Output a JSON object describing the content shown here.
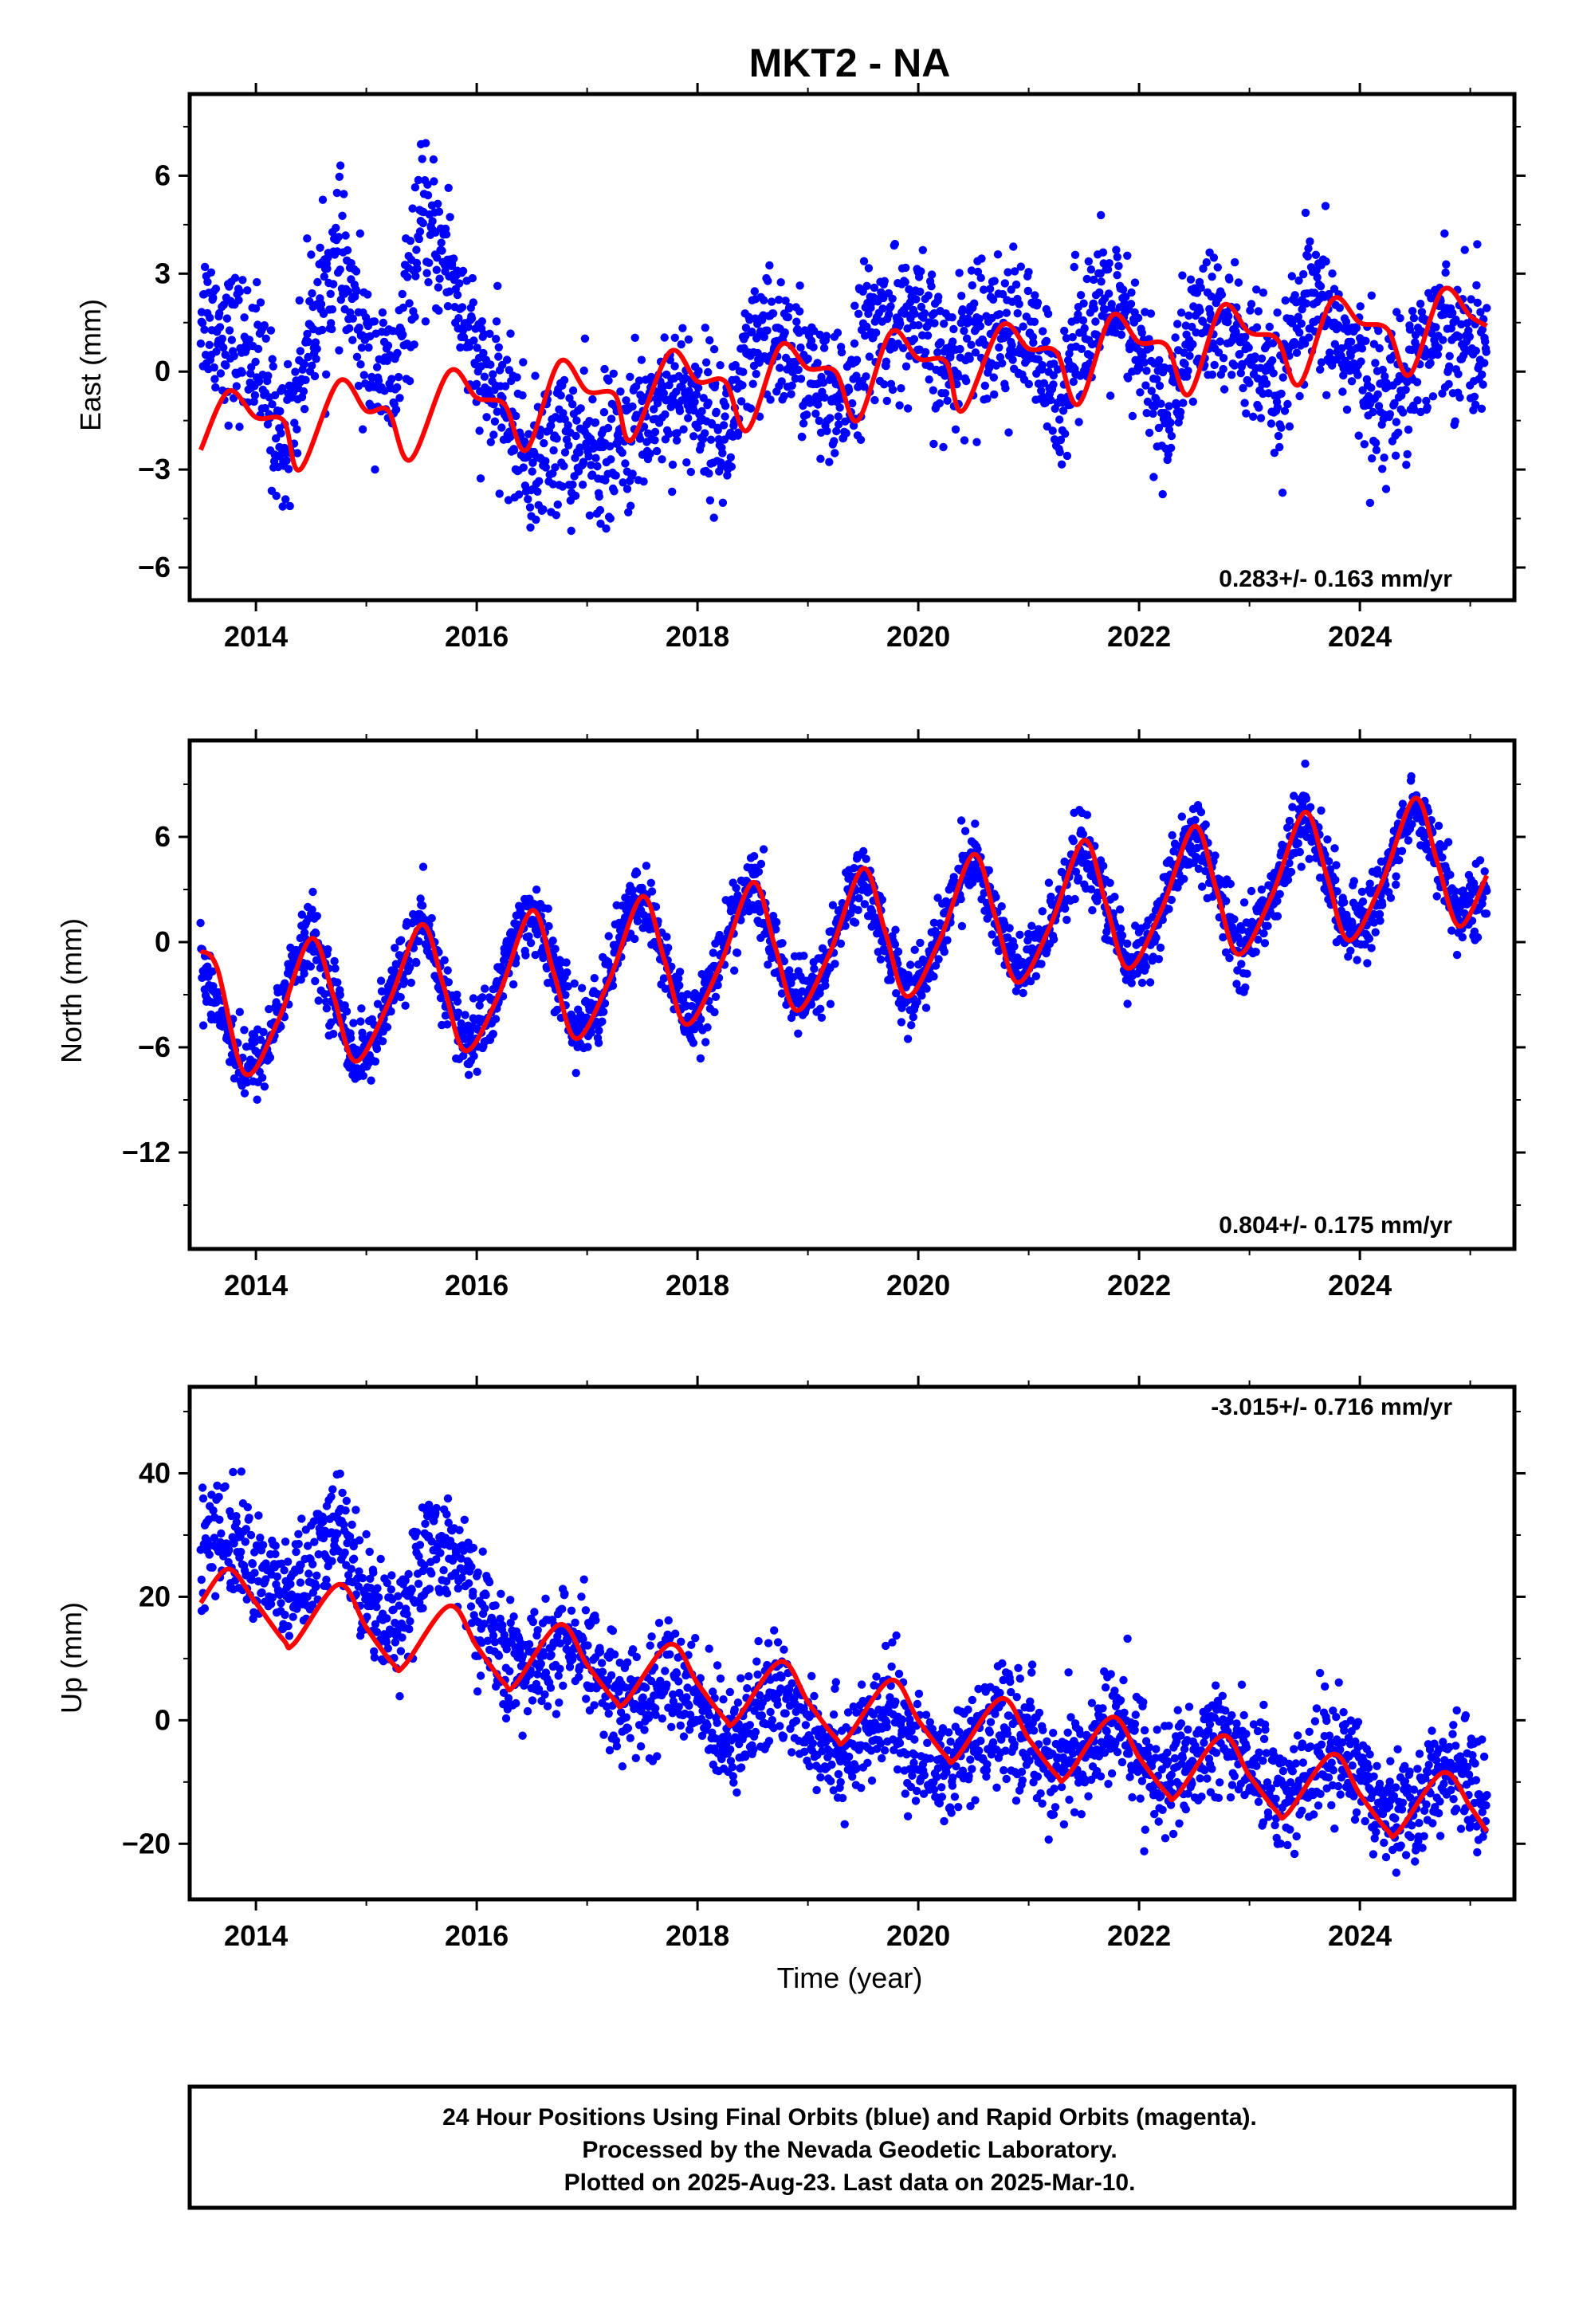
{
  "figure": {
    "title": "MKT2 - NA",
    "footer": [
      "24 Hour Positions Using Final Orbits (blue) and Rapid Orbits (magenta).",
      "Processed by the Nevada Geodetic Laboratory.",
      "Plotted on 2025-Aug-23. Last data on 2025-Mar-10."
    ],
    "colors": {
      "observations": "#0000ff",
      "model": "#ff0000"
    }
  },
  "chart_data": [
    {
      "type": "scatter",
      "ylabel": "East (mm)",
      "xlabel": "",
      "xlim": [
        2013.4,
        2025.4
      ],
      "ylim": [
        -7,
        8.5
      ],
      "yticks": [
        -6,
        -3,
        0,
        3,
        6
      ],
      "xticks": [
        2014,
        2016,
        2018,
        2020,
        2022,
        2024
      ],
      "rate": "0.283+/- 0.163 mm/yr",
      "rate_position": "bottom-right",
      "series": [
        {
          "kind": "observations",
          "x": [
            2013.5,
            2013.75,
            2014.0,
            2014.25,
            2014.5,
            2014.75,
            2015.0,
            2015.25,
            2015.5,
            2015.75,
            2016.0,
            2016.25,
            2016.5,
            2016.75,
            2017.0,
            2017.25,
            2017.5,
            2017.75,
            2018.0,
            2018.25,
            2018.5,
            2018.75,
            2019.0,
            2019.25,
            2019.5,
            2019.75,
            2020.0,
            2020.25,
            2020.5,
            2020.75,
            2021.0,
            2021.25,
            2021.5,
            2021.75,
            2022.0,
            2022.25,
            2022.5,
            2022.75,
            2023.0,
            2023.25,
            2023.5,
            2023.75,
            2024.0,
            2024.25,
            2024.5,
            2024.75,
            2025.0,
            2025.15
          ],
          "y": [
            2.0,
            1.0,
            0.5,
            -2.5,
            1.5,
            3.5,
            0.5,
            -0.5,
            4.5,
            3.5,
            0.0,
            -1.0,
            -3.0,
            -2.0,
            -2.5,
            -2.5,
            -1.5,
            -0.5,
            -1.0,
            -2.0,
            0.5,
            1.0,
            0.0,
            -1.5,
            1.0,
            1.5,
            1.5,
            0.0,
            1.5,
            1.5,
            1.0,
            -1.0,
            1.5,
            2.0,
            0.5,
            -1.5,
            1.5,
            1.5,
            0.5,
            -1.0,
            2.0,
            1.5,
            0.0,
            -1.0,
            0.5,
            1.5,
            1.0,
            0.5
          ],
          "scatter_sd": 1.1
        },
        {
          "kind": "model",
          "x": [
            2013.5,
            2013.75,
            2014.0,
            2014.25,
            2014.4,
            2014.75,
            2015.0,
            2015.2,
            2015.4,
            2015.75,
            2016.0,
            2016.25,
            2016.45,
            2016.75,
            2017.0,
            2017.25,
            2017.4,
            2017.75,
            2018.0,
            2018.25,
            2018.45,
            2018.75,
            2019.0,
            2019.25,
            2019.45,
            2019.75,
            2020.0,
            2020.25,
            2020.4,
            2020.75,
            2021.0,
            2021.25,
            2021.45,
            2021.75,
            2022.0,
            2022.25,
            2022.45,
            2022.75,
            2023.0,
            2023.25,
            2023.45,
            2023.75,
            2024.0,
            2024.25,
            2024.45,
            2024.75,
            2025.0,
            2025.15
          ],
          "y": [
            -2.4,
            -0.6,
            -1.4,
            -1.5,
            -3.0,
            -0.3,
            -1.2,
            -1.2,
            -2.7,
            0.0,
            -0.8,
            -1.0,
            -2.4,
            0.3,
            -0.6,
            -0.7,
            -2.1,
            0.6,
            -0.3,
            -0.3,
            -1.8,
            0.8,
            0.1,
            0.0,
            -1.5,
            1.2,
            0.4,
            0.3,
            -1.2,
            1.4,
            0.7,
            0.6,
            -1.0,
            1.7,
            0.9,
            0.8,
            -0.7,
            2.0,
            1.2,
            1.0,
            -0.4,
            2.2,
            1.5,
            1.3,
            -0.1,
            2.5,
            1.7,
            1.4
          ]
        }
      ]
    },
    {
      "type": "scatter",
      "ylabel": "North (mm)",
      "xlabel": "",
      "xlim": [
        2013.4,
        2025.4
      ],
      "ylim": [
        -17.5,
        11.5
      ],
      "yticks": [
        -12,
        -6,
        0,
        6
      ],
      "xticks": [
        2014,
        2016,
        2018,
        2020,
        2022,
        2024
      ],
      "rate": "0.804+/- 0.175 mm/yr",
      "rate_position": "bottom-right",
      "series": [
        {
          "kind": "observations",
          "x": [
            2013.5,
            2013.75,
            2013.9,
            2014.1,
            2014.3,
            2014.5,
            2014.7,
            2014.9,
            2015.1,
            2015.3,
            2015.5,
            2015.7,
            2015.9,
            2016.1,
            2016.3,
            2016.5,
            2016.7,
            2016.9,
            2017.1,
            2017.3,
            2017.5,
            2017.7,
            2017.9,
            2018.1,
            2018.3,
            2018.5,
            2018.7,
            2018.9,
            2019.1,
            2019.3,
            2019.5,
            2019.7,
            2019.9,
            2020.1,
            2020.3,
            2020.5,
            2020.7,
            2020.9,
            2021.1,
            2021.3,
            2021.5,
            2021.7,
            2021.9,
            2022.1,
            2022.3,
            2022.5,
            2022.7,
            2022.9,
            2023.1,
            2023.3,
            2023.5,
            2023.7,
            2023.9,
            2024.1,
            2024.3,
            2024.5,
            2024.7,
            2024.9,
            2025.1,
            2025.15
          ],
          "y": [
            -1.0,
            -5.0,
            -7.5,
            -6.0,
            -2.0,
            0.5,
            -3.0,
            -6.5,
            -5.5,
            -1.5,
            1.0,
            -2.5,
            -6.0,
            -4.5,
            -0.5,
            2.0,
            -1.5,
            -5.0,
            -4.0,
            0.5,
            2.8,
            -1.0,
            -4.5,
            -3.0,
            1.0,
            3.5,
            -0.5,
            -3.5,
            -2.5,
            1.5,
            4.0,
            0.0,
            -3.0,
            -1.5,
            2.5,
            5.0,
            1.5,
            -2.0,
            -0.5,
            3.0,
            5.5,
            2.0,
            -1.5,
            0.0,
            3.5,
            6.5,
            3.0,
            -0.5,
            1.0,
            4.5,
            7.5,
            4.0,
            0.5,
            1.5,
            5.0,
            8.0,
            5.0,
            1.5,
            2.5,
            3.5
          ],
          "scatter_sd": 1.0
        },
        {
          "kind": "model",
          "x": [
            2013.5,
            2013.65,
            2013.9,
            2014.2,
            2014.5,
            2014.7,
            2014.9,
            2015.2,
            2015.5,
            2015.7,
            2015.9,
            2016.2,
            2016.5,
            2016.7,
            2016.9,
            2017.2,
            2017.5,
            2017.7,
            2017.9,
            2018.2,
            2018.5,
            2018.7,
            2018.9,
            2019.2,
            2019.5,
            2019.7,
            2019.9,
            2020.2,
            2020.5,
            2020.7,
            2020.9,
            2021.2,
            2021.5,
            2021.7,
            2021.9,
            2022.2,
            2022.5,
            2022.7,
            2022.9,
            2023.2,
            2023.5,
            2023.7,
            2023.9,
            2024.2,
            2024.5,
            2024.7,
            2024.9,
            2025.15
          ],
          "y": [
            -0.5,
            -1.5,
            -7.5,
            -4.5,
            0.2,
            -3.0,
            -6.8,
            -3.5,
            1.0,
            -2.5,
            -6.2,
            -3.0,
            1.8,
            -1.8,
            -5.5,
            -2.2,
            2.6,
            -1.0,
            -4.7,
            -1.4,
            3.4,
            -0.2,
            -3.9,
            -0.6,
            4.2,
            0.6,
            -3.1,
            0.2,
            5.0,
            1.4,
            -2.3,
            1.0,
            5.8,
            2.2,
            -1.5,
            1.8,
            6.6,
            3.0,
            -0.7,
            2.6,
            7.4,
            3.8,
            0.1,
            3.4,
            8.2,
            4.6,
            0.9,
            3.8
          ]
        }
      ]
    },
    {
      "type": "scatter",
      "ylabel": "Up (mm)",
      "xlabel": "Time (year)",
      "xlim": [
        2013.4,
        2025.4
      ],
      "ylim": [
        -29,
        54
      ],
      "yticks": [
        -20,
        0,
        20,
        40
      ],
      "xticks": [
        2014,
        2016,
        2018,
        2020,
        2022,
        2024
      ],
      "rate": "-3.015+/- 0.716 mm/yr",
      "rate_position": "top-right",
      "series": [
        {
          "kind": "observations",
          "x": [
            2013.5,
            2013.75,
            2014.0,
            2014.25,
            2014.5,
            2014.75,
            2015.0,
            2015.25,
            2015.5,
            2015.75,
            2016.0,
            2016.25,
            2016.5,
            2016.75,
            2017.0,
            2017.25,
            2017.5,
            2017.75,
            2018.0,
            2018.25,
            2018.5,
            2018.75,
            2019.0,
            2019.25,
            2019.5,
            2019.75,
            2020.0,
            2020.25,
            2020.5,
            2020.75,
            2021.0,
            2021.25,
            2021.5,
            2021.75,
            2022.0,
            2022.25,
            2022.5,
            2022.75,
            2023.0,
            2023.25,
            2023.5,
            2023.75,
            2024.0,
            2024.25,
            2024.5,
            2024.75,
            2025.0,
            2025.15
          ],
          "y": [
            28,
            30,
            25,
            20,
            24,
            32,
            20,
            15,
            25,
            30,
            18,
            10,
            8,
            12,
            10,
            5,
            2,
            8,
            2,
            -2,
            0,
            5,
            0,
            -5,
            -4,
            2,
            -6,
            -8,
            -5,
            0,
            -3,
            -8,
            -6,
            0,
            -5,
            -10,
            -8,
            -2,
            -6,
            -12,
            -10,
            -4,
            -8,
            -14,
            -14,
            -8,
            -10,
            -12
          ],
          "scatter_sd": 4.5
        },
        {
          "kind": "model",
          "x": [
            2013.5,
            2013.75,
            2014.0,
            2014.25,
            2014.35,
            2014.75,
            2015.0,
            2015.25,
            2015.35,
            2015.75,
            2016.0,
            2016.25,
            2016.35,
            2016.75,
            2017.0,
            2017.25,
            2017.35,
            2017.75,
            2018.0,
            2018.25,
            2018.35,
            2018.75,
            2019.0,
            2019.25,
            2019.35,
            2019.75,
            2020.0,
            2020.25,
            2020.35,
            2020.75,
            2021.0,
            2021.25,
            2021.35,
            2021.75,
            2022.0,
            2022.25,
            2022.35,
            2022.75,
            2023.0,
            2023.25,
            2023.35,
            2023.75,
            2024.0,
            2024.25,
            2024.35,
            2024.75,
            2025.0,
            2025.15
          ],
          "y": [
            19,
            24.5,
            19,
            13,
            12.5,
            22,
            15,
            9,
            9,
            18.5,
            12,
            6,
            5.8,
            15.5,
            9,
            3.3,
            3,
            12.3,
            6,
            0.2,
            0,
            9.5,
            3,
            -2.8,
            -3,
            6.5,
            0,
            -5.8,
            -6,
            3.5,
            -3,
            -8.8,
            -9,
            0.5,
            -6,
            -11.8,
            -12,
            -2.5,
            -9,
            -14.8,
            -15,
            -5.5,
            -12,
            -17.8,
            -18,
            -8.5,
            -14,
            -18
          ]
        }
      ]
    }
  ]
}
